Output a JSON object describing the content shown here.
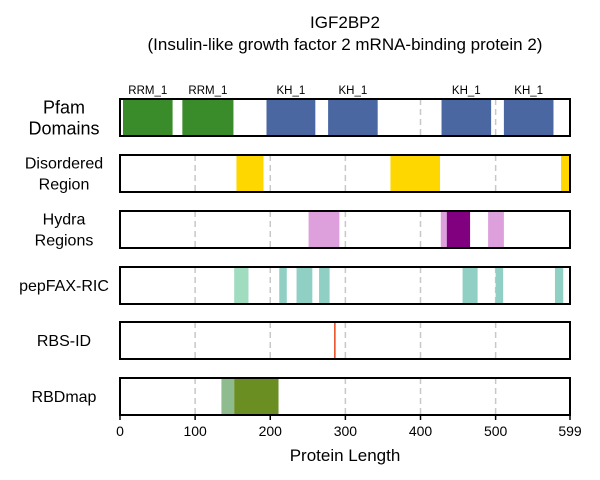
{
  "chart_data": {
    "type": "track",
    "title": "IGF2BP2",
    "subtitle": "(Insulin-like growth factor 2 mRNA-binding protein 2)",
    "xlabel": "Protein Length",
    "xlim": [
      0,
      599
    ],
    "xticks": [
      0,
      100,
      200,
      300,
      400,
      500,
      599
    ],
    "gridlines": [
      100,
      200,
      300,
      400,
      500
    ],
    "tracks": [
      {
        "label": [
          "Pfam",
          "Domains"
        ],
        "features": [
          {
            "start": 4,
            "end": 70,
            "color": "#3a8c2a",
            "label": "RRM_1"
          },
          {
            "start": 83,
            "end": 151,
            "color": "#3a8c2a",
            "label": "RRM_1"
          },
          {
            "start": 195,
            "end": 260,
            "color": "#4a67a1",
            "label": "KH_1"
          },
          {
            "start": 277,
            "end": 343,
            "color": "#4a67a1",
            "label": "KH_1"
          },
          {
            "start": 428,
            "end": 494,
            "color": "#4a67a1",
            "label": "KH_1"
          },
          {
            "start": 511,
            "end": 577,
            "color": "#4a67a1",
            "label": "KH_1"
          }
        ]
      },
      {
        "label": [
          "Disordered",
          "Region"
        ],
        "features": [
          {
            "start": 155,
            "end": 191,
            "color": "#ffd700"
          },
          {
            "start": 360,
            "end": 426,
            "color": "#ffd700"
          },
          {
            "start": 587,
            "end": 599,
            "color": "#ffd700"
          }
        ]
      },
      {
        "label": [
          "Hydra",
          "Regions"
        ],
        "features": [
          {
            "start": 251,
            "end": 292,
            "color": "#dda0dd"
          },
          {
            "start": 427,
            "end": 435,
            "color": "#dda0dd"
          },
          {
            "start": 435,
            "end": 466,
            "color": "#800080"
          },
          {
            "start": 490,
            "end": 511,
            "color": "#dda0dd"
          }
        ]
      },
      {
        "label": [
          "pepFAX-RIC"
        ],
        "features": [
          {
            "start": 152,
            "end": 171,
            "color": "#a0dcc0"
          },
          {
            "start": 212,
            "end": 222,
            "color": "#8fcfc4"
          },
          {
            "start": 235,
            "end": 256,
            "color": "#8fcfc4"
          },
          {
            "start": 265,
            "end": 279,
            "color": "#8fcfc4"
          },
          {
            "start": 456,
            "end": 476,
            "color": "#8fcfc4"
          },
          {
            "start": 500,
            "end": 510,
            "color": "#8fcfc4"
          },
          {
            "start": 579,
            "end": 590,
            "color": "#8fcfc4"
          }
        ]
      },
      {
        "label": [
          "RBS-ID"
        ],
        "features": [
          {
            "start": 285,
            "end": 287,
            "color": "#e8471a"
          }
        ]
      },
      {
        "label": [
          "RBDmap"
        ],
        "features": [
          {
            "start": 135,
            "end": 152,
            "color": "#8fbc8f"
          },
          {
            "start": 152,
            "end": 211,
            "color": "#6b8e23"
          }
        ]
      }
    ]
  }
}
